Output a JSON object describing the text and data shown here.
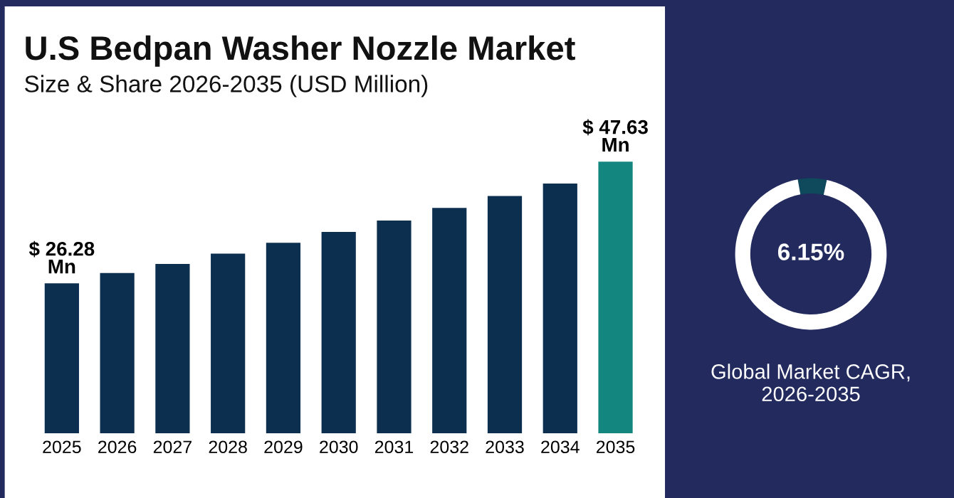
{
  "chart_data": [
    {
      "type": "bar",
      "title": "U.S Bedpan Washer Nozzle Market",
      "subtitle": "Size & Share 2026-2035 (USD Million)",
      "categories": [
        "2025",
        "2026",
        "2027",
        "2028",
        "2029",
        "2030",
        "2031",
        "2032",
        "2033",
        "2034",
        "2035"
      ],
      "values": [
        26.28,
        28.1,
        29.7,
        31.5,
        33.4,
        35.3,
        37.3,
        39.5,
        41.6,
        43.8,
        47.63
      ],
      "colors": [
        "#0c2f50",
        "#0c2f50",
        "#0c2f50",
        "#0c2f50",
        "#0c2f50",
        "#0c2f50",
        "#0c2f50",
        "#0c2f50",
        "#0c2f50",
        "#0c2f50",
        "#13867f"
      ],
      "value_labels": [
        "$ 26.28\nMn",
        null,
        null,
        null,
        null,
        null,
        null,
        null,
        null,
        null,
        "$ 47.63\nMn"
      ],
      "tick_labels": "x",
      "grid": false,
      "legend": false
    },
    {
      "type": "donut",
      "categories": [
        null,
        null
      ],
      "values": [
        6.15,
        93.85
      ],
      "colors": [
        "#0e4a5c",
        "#ffffff"
      ],
      "value_labels": [
        "6.15%",
        null
      ],
      "xlabel": "Global Market CAGR,\n2026-2035",
      "legend": false
    }
  ]
}
